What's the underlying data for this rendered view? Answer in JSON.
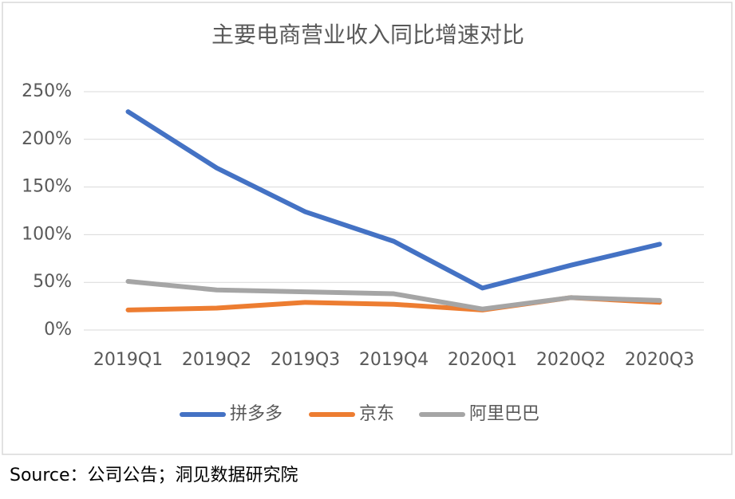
{
  "chart_data": {
    "type": "line",
    "title": "主要电商营业收入同比增速对比",
    "categories": [
      "2019Q1",
      "2019Q2",
      "2019Q3",
      "2019Q4",
      "2020Q1",
      "2020Q2",
      "2020Q3"
    ],
    "series": [
      {
        "name": "拼多多",
        "color": "#4472c4",
        "values": [
          229,
          170,
          124,
          93,
          44,
          68,
          90
        ]
      },
      {
        "name": "京东",
        "color": "#ed7d31",
        "values": [
          21,
          23,
          29,
          27,
          21,
          34,
          29
        ]
      },
      {
        "name": "阿里巴巴",
        "color": "#a5a5a5",
        "values": [
          51,
          42,
          40,
          38,
          22,
          34,
          31
        ]
      }
    ],
    "ylim": [
      0,
      250
    ],
    "yticks": [
      {
        "value": 0,
        "label": "0%"
      },
      {
        "value": 50,
        "label": "50%"
      },
      {
        "value": 100,
        "label": "100%"
      },
      {
        "value": 150,
        "label": "150%"
      },
      {
        "value": 200,
        "label": "200%"
      },
      {
        "value": 250,
        "label": "250%"
      }
    ],
    "grid": true,
    "legend": "bottom"
  },
  "source": "Source：公司公告；洞见数据研究院"
}
